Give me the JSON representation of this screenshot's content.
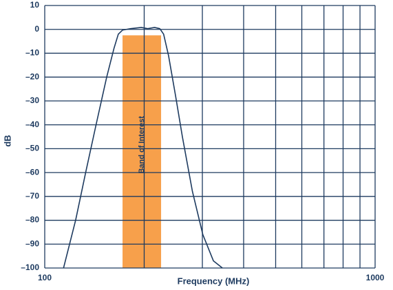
{
  "chart_data": {
    "type": "line",
    "x_label": "Frequency (MHz)",
    "y_label": "dB",
    "xscale": "log",
    "xlim": [
      100,
      1000
    ],
    "ylim": [
      -100,
      10
    ],
    "xticks": [
      100,
      {
        "value": 200,
        "label": null
      },
      {
        "value": 300,
        "label": null
      },
      {
        "value": 400,
        "label": null
      },
      {
        "value": 500,
        "label": null
      },
      {
        "value": 600,
        "label": null
      },
      {
        "value": 700,
        "label": null
      },
      {
        "value": 800,
        "label": null
      },
      {
        "value": 900,
        "label": null
      },
      1000
    ],
    "yticks": [
      {
        "value": -100,
        "label": "–100"
      },
      {
        "value": -90,
        "label": "–90"
      },
      {
        "value": -80,
        "label": "–80"
      },
      {
        "value": -70,
        "label": "–70"
      },
      {
        "value": -60,
        "label": "–60"
      },
      {
        "value": -50,
        "label": "–50"
      },
      {
        "value": -40,
        "label": "–40"
      },
      {
        "value": -30,
        "label": "–30"
      },
      {
        "value": -20,
        "label": "–20"
      },
      {
        "value": -10,
        "label": "–10"
      },
      0,
      10
    ],
    "grid": true,
    "color": "#1d3a5f",
    "series": [
      {
        "color": "#1d3a5f",
        "x": [
          114,
          124,
          133,
          143,
          154,
          162,
          167,
          172,
          182,
          196,
          205,
          215,
          223,
          229,
          237,
          249,
          261,
          280,
          301,
          324,
          345
        ],
        "values": [
          -100,
          -80,
          -60,
          -40,
          -20,
          -8,
          -2,
          -0.3,
          0.3,
          0.8,
          0.3,
          0.8,
          0.3,
          -2,
          -11,
          -28,
          -45,
          -68,
          -86,
          -97,
          -100
        ]
      }
    ],
    "band": {
      "label": "Band of Interest",
      "x": [
        172,
        225
      ],
      "top": -2.5,
      "color": "#f7a04b"
    }
  }
}
